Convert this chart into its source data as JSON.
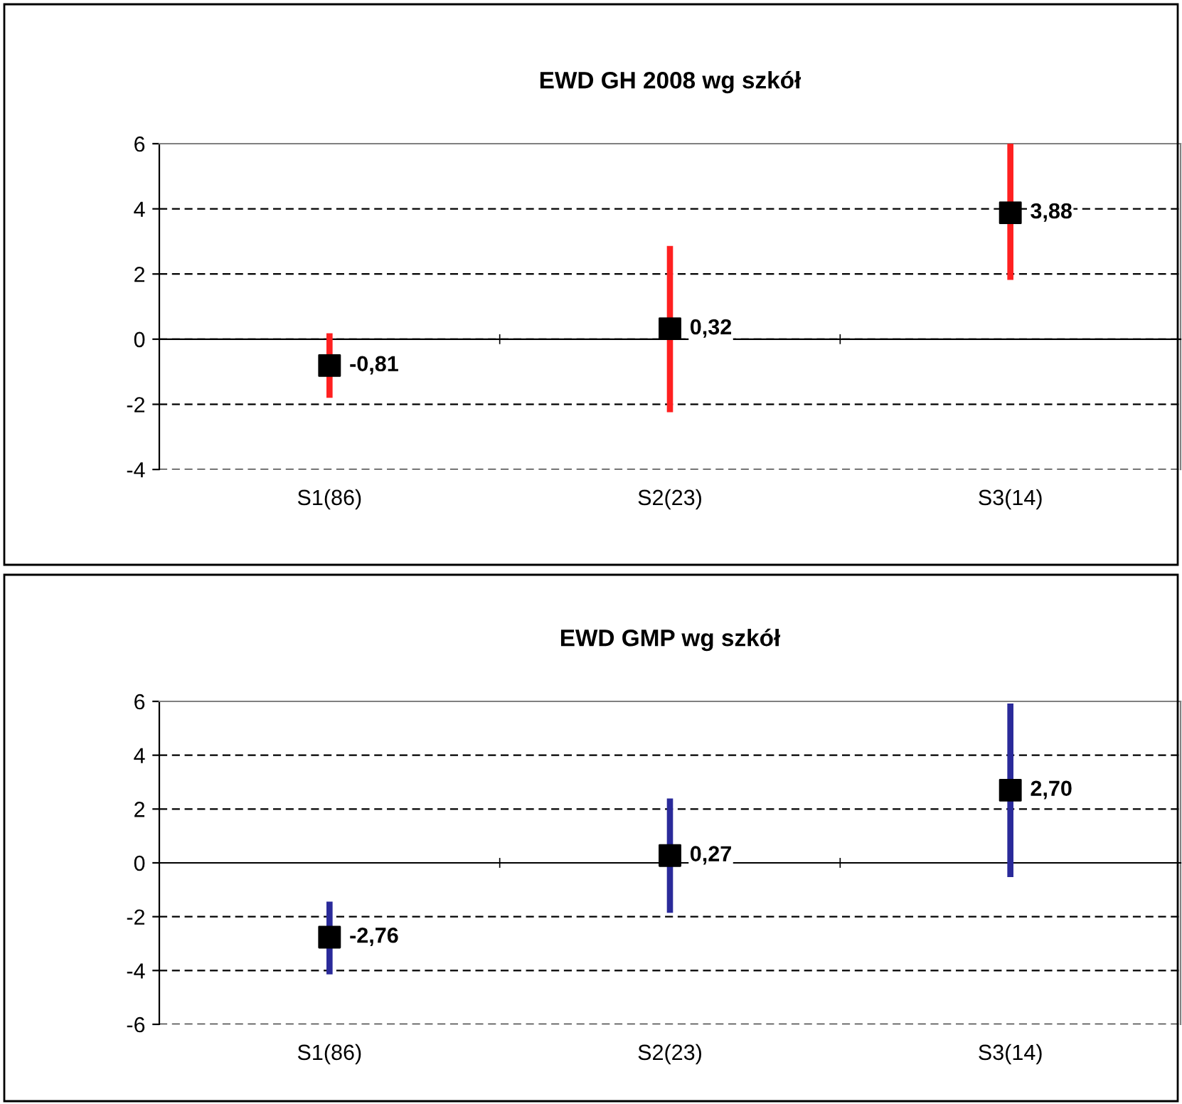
{
  "chart_data": [
    {
      "type": "scatter",
      "title": "EWD GH 2008 wg szkół",
      "categories": [
        "S1(86)",
        "S2(23)",
        "S3(14)"
      ],
      "series": [
        {
          "type": "bar",
          "color": "#ff2020",
          "base": [
            -1.8,
            -2.24,
            1.82
          ],
          "values": [
            1.98,
            5.1,
            4.18
          ]
        },
        {
          "color": "#000000",
          "values": [
            -0.81,
            0.32,
            3.88
          ],
          "value_labels": [
            "-0,81",
            "0,32",
            "3,88"
          ]
        }
      ],
      "ylim": [
        -4,
        6
      ],
      "yticks": [
        -4,
        -2,
        0,
        2,
        4,
        6
      ],
      "grid": "y",
      "marker": "square"
    },
    {
      "type": "scatter",
      "title": "EWD GMP wg szkół",
      "categories": [
        "S1(86)",
        "S2(23)",
        "S3(14)"
      ],
      "series": [
        {
          "type": "bar",
          "color": "#2a2a9a",
          "base": [
            -4.14,
            -1.86,
            -0.53
          ],
          "values": [
            2.7,
            4.25,
            6.45
          ]
        },
        {
          "color": "#000000",
          "values": [
            -2.76,
            0.27,
            2.7
          ],
          "value_labels": [
            "-2,76",
            "0,27",
            "2,70"
          ]
        }
      ],
      "ylim": [
        -6,
        6
      ],
      "yticks": [
        -6,
        -4,
        -2,
        0,
        2,
        4,
        6
      ],
      "grid": "y",
      "marker": "square"
    }
  ]
}
